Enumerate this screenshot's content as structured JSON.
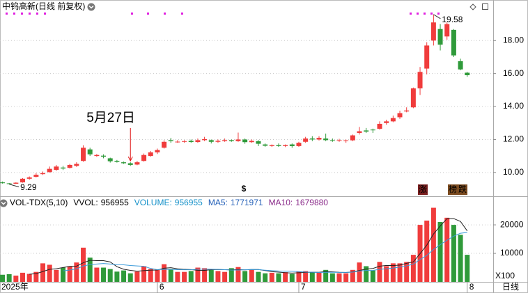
{
  "chart_data": [
    {
      "type": "candlestick",
      "title": "中钨高新(日线 前复权)",
      "categories": [
        "2025年",
        null,
        null,
        null,
        null,
        null,
        null,
        null,
        null,
        null,
        null,
        null,
        null,
        null,
        null,
        null,
        null,
        null,
        null,
        null,
        null,
        null,
        null,
        "6",
        null,
        null,
        null,
        null,
        null,
        null,
        null,
        null,
        null,
        null,
        null,
        null,
        null,
        null,
        null,
        null,
        null,
        null,
        null,
        null,
        "7",
        null,
        null,
        null,
        null,
        null,
        null,
        null,
        null,
        null,
        null,
        null,
        null,
        null,
        null,
        null,
        null,
        null,
        null,
        null,
        null,
        null,
        null,
        null,
        null,
        "8"
      ],
      "open": [
        9.4,
        9.34,
        9.32,
        9.4,
        9.62,
        9.74,
        9.9,
        10.02,
        10.16,
        10.3,
        10.28,
        10.4,
        10.7,
        11.4,
        11.0,
        11.02,
        10.86,
        10.7,
        10.62,
        10.56,
        10.48,
        10.7,
        11.0,
        11.22,
        11.5,
        11.96,
        11.86,
        11.86,
        11.92,
        11.85,
        11.96,
        11.96,
        11.86,
        11.9,
        11.96,
        11.9,
        12.0,
        11.84,
        11.9,
        11.7,
        11.6,
        11.66,
        11.6,
        11.7,
        11.6,
        11.86,
        12.06,
        12.0,
        12.06,
        11.96,
        11.94,
        11.92,
        11.95,
        12.4,
        12.55,
        12.6,
        12.65,
        13.0,
        13.1,
        13.35,
        13.7,
        13.95,
        15.1,
        16.3,
        18.0,
        18.7,
        18.25,
        18.65,
        16.75,
        16.05
      ],
      "high": [
        9.45,
        9.36,
        9.4,
        9.66,
        9.76,
        9.96,
        10.06,
        10.36,
        10.46,
        10.4,
        10.52,
        10.62,
        11.65,
        11.5,
        11.12,
        11.1,
        10.9,
        10.76,
        10.66,
        10.62,
        10.7,
        11.15,
        11.3,
        11.45,
        11.96,
        12.1,
        11.96,
        11.96,
        12.0,
        12.06,
        12.16,
        12.0,
        12.0,
        12.06,
        12.0,
        12.42,
        12.06,
        12.0,
        11.96,
        11.76,
        11.7,
        11.76,
        11.7,
        11.76,
        11.86,
        12.16,
        12.2,
        12.2,
        12.36,
        12.06,
        12.04,
        12.0,
        12.3,
        12.76,
        12.7,
        12.66,
        13.1,
        13.2,
        13.45,
        13.75,
        13.95,
        15.15,
        16.4,
        17.9,
        19.58,
        19.0,
        19.1,
        18.7,
        16.9,
        16.1
      ],
      "low": [
        9.33,
        9.29,
        9.3,
        9.38,
        9.56,
        9.7,
        9.85,
        10.0,
        10.1,
        10.15,
        10.24,
        10.34,
        10.65,
        11.0,
        10.95,
        10.86,
        10.6,
        10.6,
        10.52,
        10.4,
        10.44,
        10.66,
        10.96,
        11.12,
        11.45,
        11.8,
        11.8,
        11.8,
        11.8,
        11.8,
        11.9,
        11.76,
        11.8,
        11.86,
        11.86,
        11.86,
        11.74,
        11.8,
        11.6,
        11.56,
        11.55,
        11.55,
        11.54,
        11.5,
        11.55,
        11.8,
        11.9,
        11.94,
        11.9,
        11.86,
        11.86,
        11.8,
        11.9,
        12.3,
        12.4,
        12.4,
        12.6,
        12.9,
        13.05,
        13.25,
        13.65,
        13.9,
        14.7,
        15.95,
        17.7,
        17.4,
        18.05,
        17.0,
        16.2,
        15.8
      ],
      "close": [
        9.35,
        9.31,
        9.38,
        9.62,
        9.7,
        9.86,
        9.96,
        10.22,
        10.36,
        10.24,
        10.46,
        10.52,
        11.5,
        11.1,
        11.06,
        10.96,
        10.68,
        10.64,
        10.56,
        10.46,
        10.62,
        11.06,
        11.22,
        11.36,
        11.86,
        11.9,
        11.87,
        11.9,
        11.85,
        11.96,
        12.02,
        11.86,
        11.92,
        11.96,
        11.9,
        12.0,
        11.84,
        11.92,
        11.74,
        11.62,
        11.66,
        11.6,
        11.66,
        11.6,
        11.8,
        12.06,
        12.0,
        12.1,
        11.96,
        11.94,
        11.96,
        11.95,
        12.25,
        12.5,
        12.48,
        12.56,
        12.95,
        13.1,
        13.3,
        13.6,
        13.76,
        15.1,
        16.1,
        17.7,
        19.1,
        17.75,
        19.0,
        17.1,
        16.25,
        15.9
      ],
      "up_color": "#f03c3c",
      "down_color": "#2f9a3a",
      "ylim": [
        8.6,
        19.7
      ],
      "yticks": [
        {
          "value": 10,
          "label": "10.00"
        },
        {
          "value": 12,
          "label": "12.00"
        },
        {
          "value": 14,
          "label": "14.00"
        },
        {
          "value": 16,
          "label": "16.00"
        },
        {
          "value": 18,
          "label": "18.00"
        }
      ],
      "grid": true,
      "max_marker": 19.58,
      "min_marker": 9.29,
      "annotation": "5月27日",
      "events": [
        "$",
        "涨",
        "榜",
        "跌"
      ],
      "period": "日线"
    },
    {
      "type": "bar",
      "title": "VOL-TDX(5,10)",
      "values": [
        2500,
        2700,
        2200,
        3200,
        2800,
        3500,
        6500,
        6000,
        4200,
        5000,
        5500,
        6800,
        12000,
        8500,
        5000,
        5000,
        4500,
        3600,
        4000,
        3000,
        3600,
        5500,
        4500,
        4200,
        6200,
        4500,
        3500,
        3500,
        3800,
        5000,
        4800,
        4200,
        3800,
        3500,
        4800,
        5200,
        3800,
        4400,
        3500,
        3000,
        3200,
        3000,
        3400,
        2800,
        3600,
        3800,
        3300,
        3300,
        4200,
        3000,
        3000,
        3000,
        4200,
        6800,
        5500,
        4000,
        7000,
        5500,
        6500,
        6500,
        7000,
        9500,
        20000,
        21500,
        26000,
        21000,
        22500,
        20000,
        16500,
        9500
      ],
      "series": [
        {
          "name": "MA5",
          "color": "#222222",
          "values": [
            null,
            null,
            null,
            null,
            2680,
            2880,
            3640,
            4400,
            4600,
            5040,
            5440,
            5500,
            6700,
            7560,
            7460,
            7460,
            7000,
            5320,
            4420,
            4020,
            3740,
            3940,
            4120,
            4160,
            4800,
            4980,
            4580,
            4380,
            4300,
            4060,
            4020,
            4260,
            4320,
            4260,
            4220,
            4300,
            4220,
            4340,
            4340,
            3980,
            3580,
            3420,
            3220,
            3080,
            3200,
            3320,
            3380,
            3360,
            3640,
            3520,
            3360,
            3300,
            3480,
            4000,
            4500,
            4700,
            5500,
            5760,
            5700,
            5900,
            6500,
            7000,
            9900,
            12900,
            16800,
            19600,
            22200,
            22200,
            21200,
            17900
          ]
        },
        {
          "name": "MA10",
          "color": "#3a9ad9",
          "values": [
            null,
            null,
            null,
            null,
            null,
            null,
            null,
            null,
            null,
            3860,
            4160,
            4570,
            5550,
            6080,
            6250,
            6450,
            6250,
            6010,
            5990,
            5740,
            5600,
            5470,
            4720,
            4290,
            4410,
            4360,
            4260,
            4250,
            4230,
            4430,
            4500,
            4420,
            4350,
            4280,
            4140,
            4160,
            4240,
            4330,
            4300,
            4100,
            3940,
            3820,
            3780,
            3710,
            3590,
            3450,
            3400,
            3290,
            3360,
            3360,
            3340,
            3340,
            3420,
            3820,
            4010,
            4030,
            4400,
            4620,
            4850,
            5200,
            5600,
            6250,
            7830,
            9300,
            11350,
            13050,
            14600,
            16050,
            17050,
            17350
          ]
        }
      ],
      "readouts": [
        {
          "label": "VVOL:",
          "value": 956955,
          "color": "#000000"
        },
        {
          "label": "VOLUME:",
          "value": 956955,
          "color": "#1591c9"
        },
        {
          "label": "MA5:",
          "value": 1771971,
          "color": "#2460b8"
        },
        {
          "label": "MA10:",
          "value": 1679880,
          "color": "#8a2b8a"
        }
      ],
      "ylim": [
        0,
        29300
      ],
      "yticks": [
        10000,
        20000
      ],
      "grid": true,
      "unit_label": "X100"
    }
  ]
}
